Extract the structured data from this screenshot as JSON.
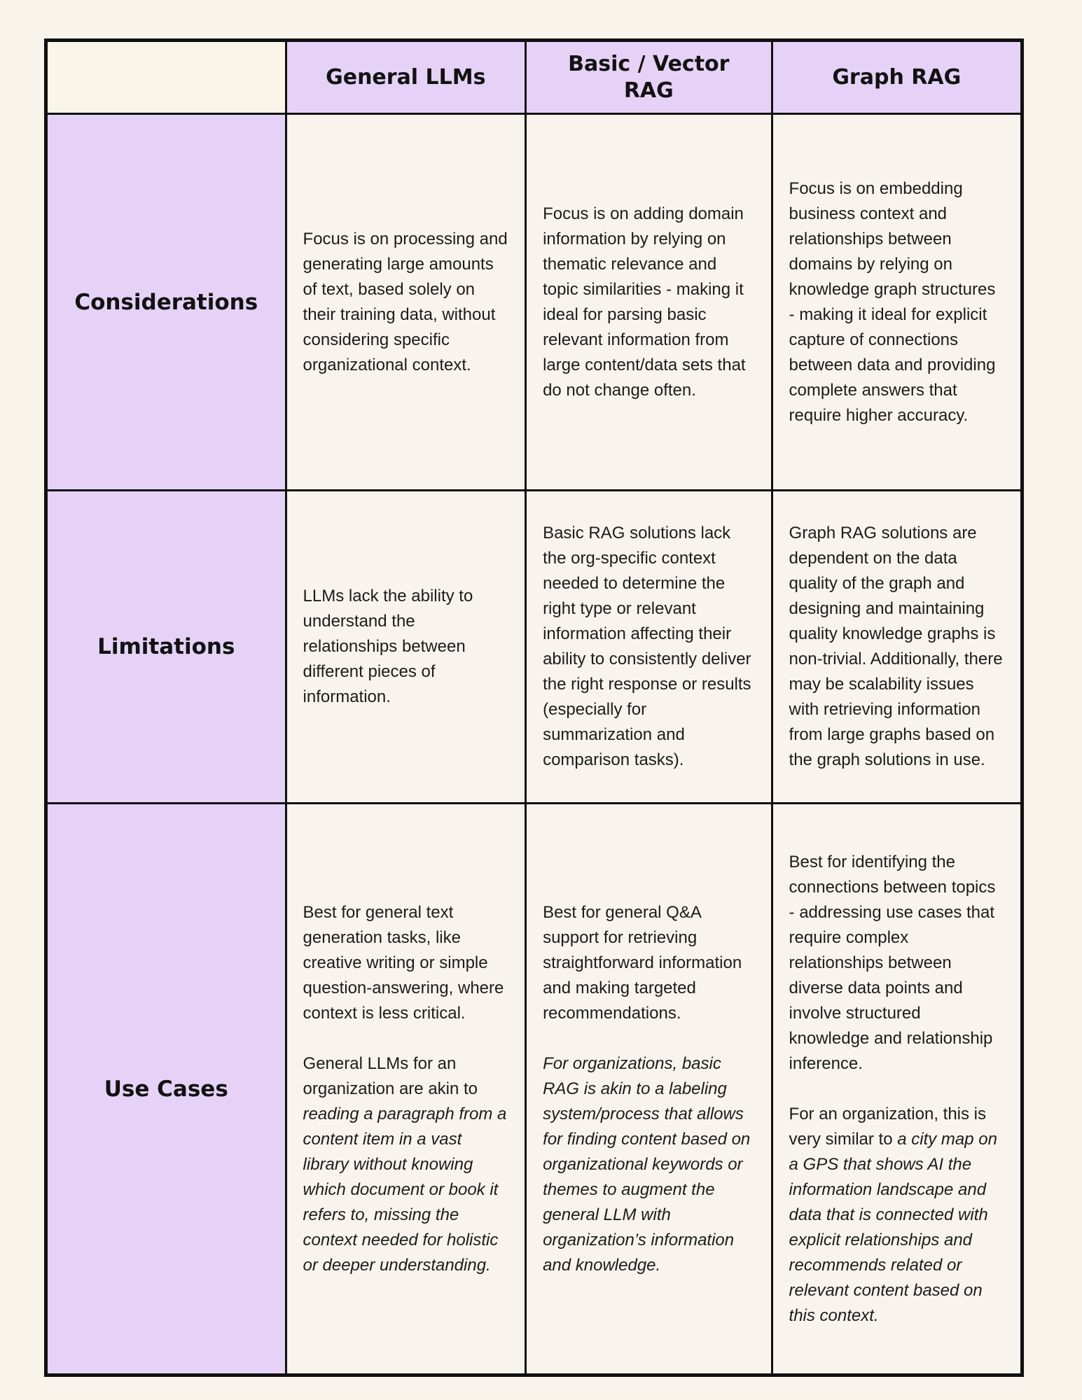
{
  "colors": {
    "lavender_header": "#e6d2f7",
    "cream_corner": "#f9f6e9",
    "cell_background": "#f8f4ed",
    "border": "#101010"
  },
  "header": {
    "col1": "General LLMs",
    "col2": "Basic / Vector RAG",
    "col3": "Graph RAG"
  },
  "rows": {
    "considerations": {
      "label": "Considerations",
      "general_llms": "Focus is on processing and generating large amounts of text, based solely on their training data, without considering specific organizational context.",
      "vector_rag": "Focus is on adding domain information by relying on thematic relevance and topic similarities - making it ideal for parsing basic relevant information from large content/data sets that do not change often.",
      "graph_rag": "Focus is on embedding business context and relationships between domains by relying on knowledge graph structures - making it ideal for explicit capture of connections between data and providing complete answers that require higher accuracy."
    },
    "limitations": {
      "label": "Limitations",
      "general_llms": "LLMs lack the ability to understand the relationships between different pieces of information.",
      "vector_rag": "Basic RAG solutions lack the org-specific context needed to determine the right type or relevant information affecting their ability to consistently deliver the right response or results (especially for summarization and comparison tasks).",
      "graph_rag": "Graph RAG solutions are dependent on the data quality of the graph and designing and maintaining quality knowledge graphs is non-trivial. Additionally, there may be scalability issues with retrieving information from large graphs based on the graph solutions in use."
    },
    "use_cases": {
      "label": "Use Cases",
      "general_llms": {
        "p1": "Best for general text generation tasks, like creative writing or simple question-answering, where context is less critical.",
        "p2_regular": "General LLMs for an organization are akin to ",
        "p2_italic": "reading a paragraph from a content item in a vast library without knowing which document or book it refers to, missing the context needed for holistic or deeper understanding."
      },
      "vector_rag": {
        "p1": "Best for general Q&A support for retrieving straightforward information and making targeted recommendations.",
        "p2_italic": "For organizations, basic RAG is akin to a labeling system/process that allows for finding content based on organizational keywords or themes to augment the general LLM with organization’s information and knowledge."
      },
      "graph_rag": {
        "p1": "Best for identifying the connections between topics - addressing use cases that require complex relationships between diverse data points and involve structured knowledge and relationship inference.",
        "p2_regular": "For an organization, this is very similar to ",
        "p2_italic": "a city map on a GPS that shows AI the information landscape and data that is connected with explicit relationships and recommends related or relevant content based on this context."
      }
    }
  }
}
